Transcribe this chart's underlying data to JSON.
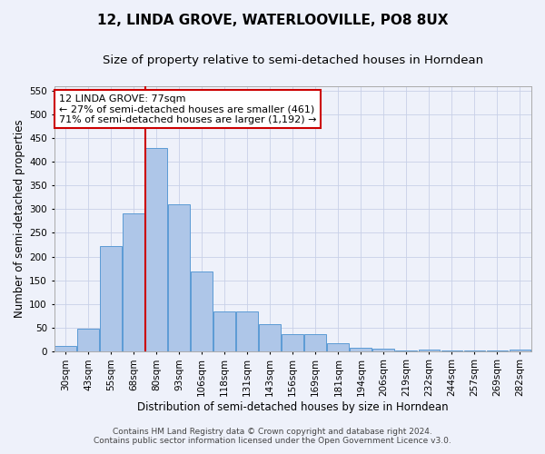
{
  "title_line1": "12, LINDA GROVE, WATERLOOVILLE, PO8 8UX",
  "title_line2": "Size of property relative to semi-detached houses in Horndean",
  "xlabel": "Distribution of semi-detached houses by size in Horndean",
  "ylabel": "Number of semi-detached properties",
  "categories": [
    "30sqm",
    "43sqm",
    "55sqm",
    "68sqm",
    "80sqm",
    "93sqm",
    "106sqm",
    "118sqm",
    "131sqm",
    "143sqm",
    "156sqm",
    "169sqm",
    "181sqm",
    "194sqm",
    "206sqm",
    "219sqm",
    "232sqm",
    "244sqm",
    "257sqm",
    "269sqm",
    "282sqm"
  ],
  "values": [
    10,
    48,
    222,
    291,
    430,
    310,
    168,
    83,
    83,
    57,
    35,
    35,
    16,
    7,
    5,
    1,
    3,
    1,
    1,
    1,
    3
  ],
  "bar_color": "#aec6e8",
  "bar_edge_color": "#5b9bd5",
  "vline_color": "#cc0000",
  "annotation_line1": "12 LINDA GROVE: 77sqm",
  "annotation_line2": "← 27% of semi-detached houses are smaller (461)",
  "annotation_line3": "71% of semi-detached houses are larger (1,192) →",
  "annotation_box_color": "#cc0000",
  "annotation_box_fill": "#ffffff",
  "ylim": [
    0,
    560
  ],
  "yticks": [
    0,
    50,
    100,
    150,
    200,
    250,
    300,
    350,
    400,
    450,
    500,
    550
  ],
  "footer_line1": "Contains HM Land Registry data © Crown copyright and database right 2024.",
  "footer_line2": "Contains public sector information licensed under the Open Government Licence v3.0.",
  "title_fontsize": 11,
  "subtitle_fontsize": 9.5,
  "axis_label_fontsize": 8.5,
  "tick_fontsize": 7.5,
  "annotation_fontsize": 8,
  "footer_fontsize": 6.5,
  "background_color": "#eef1fa",
  "grid_color": "#c8d0e8"
}
